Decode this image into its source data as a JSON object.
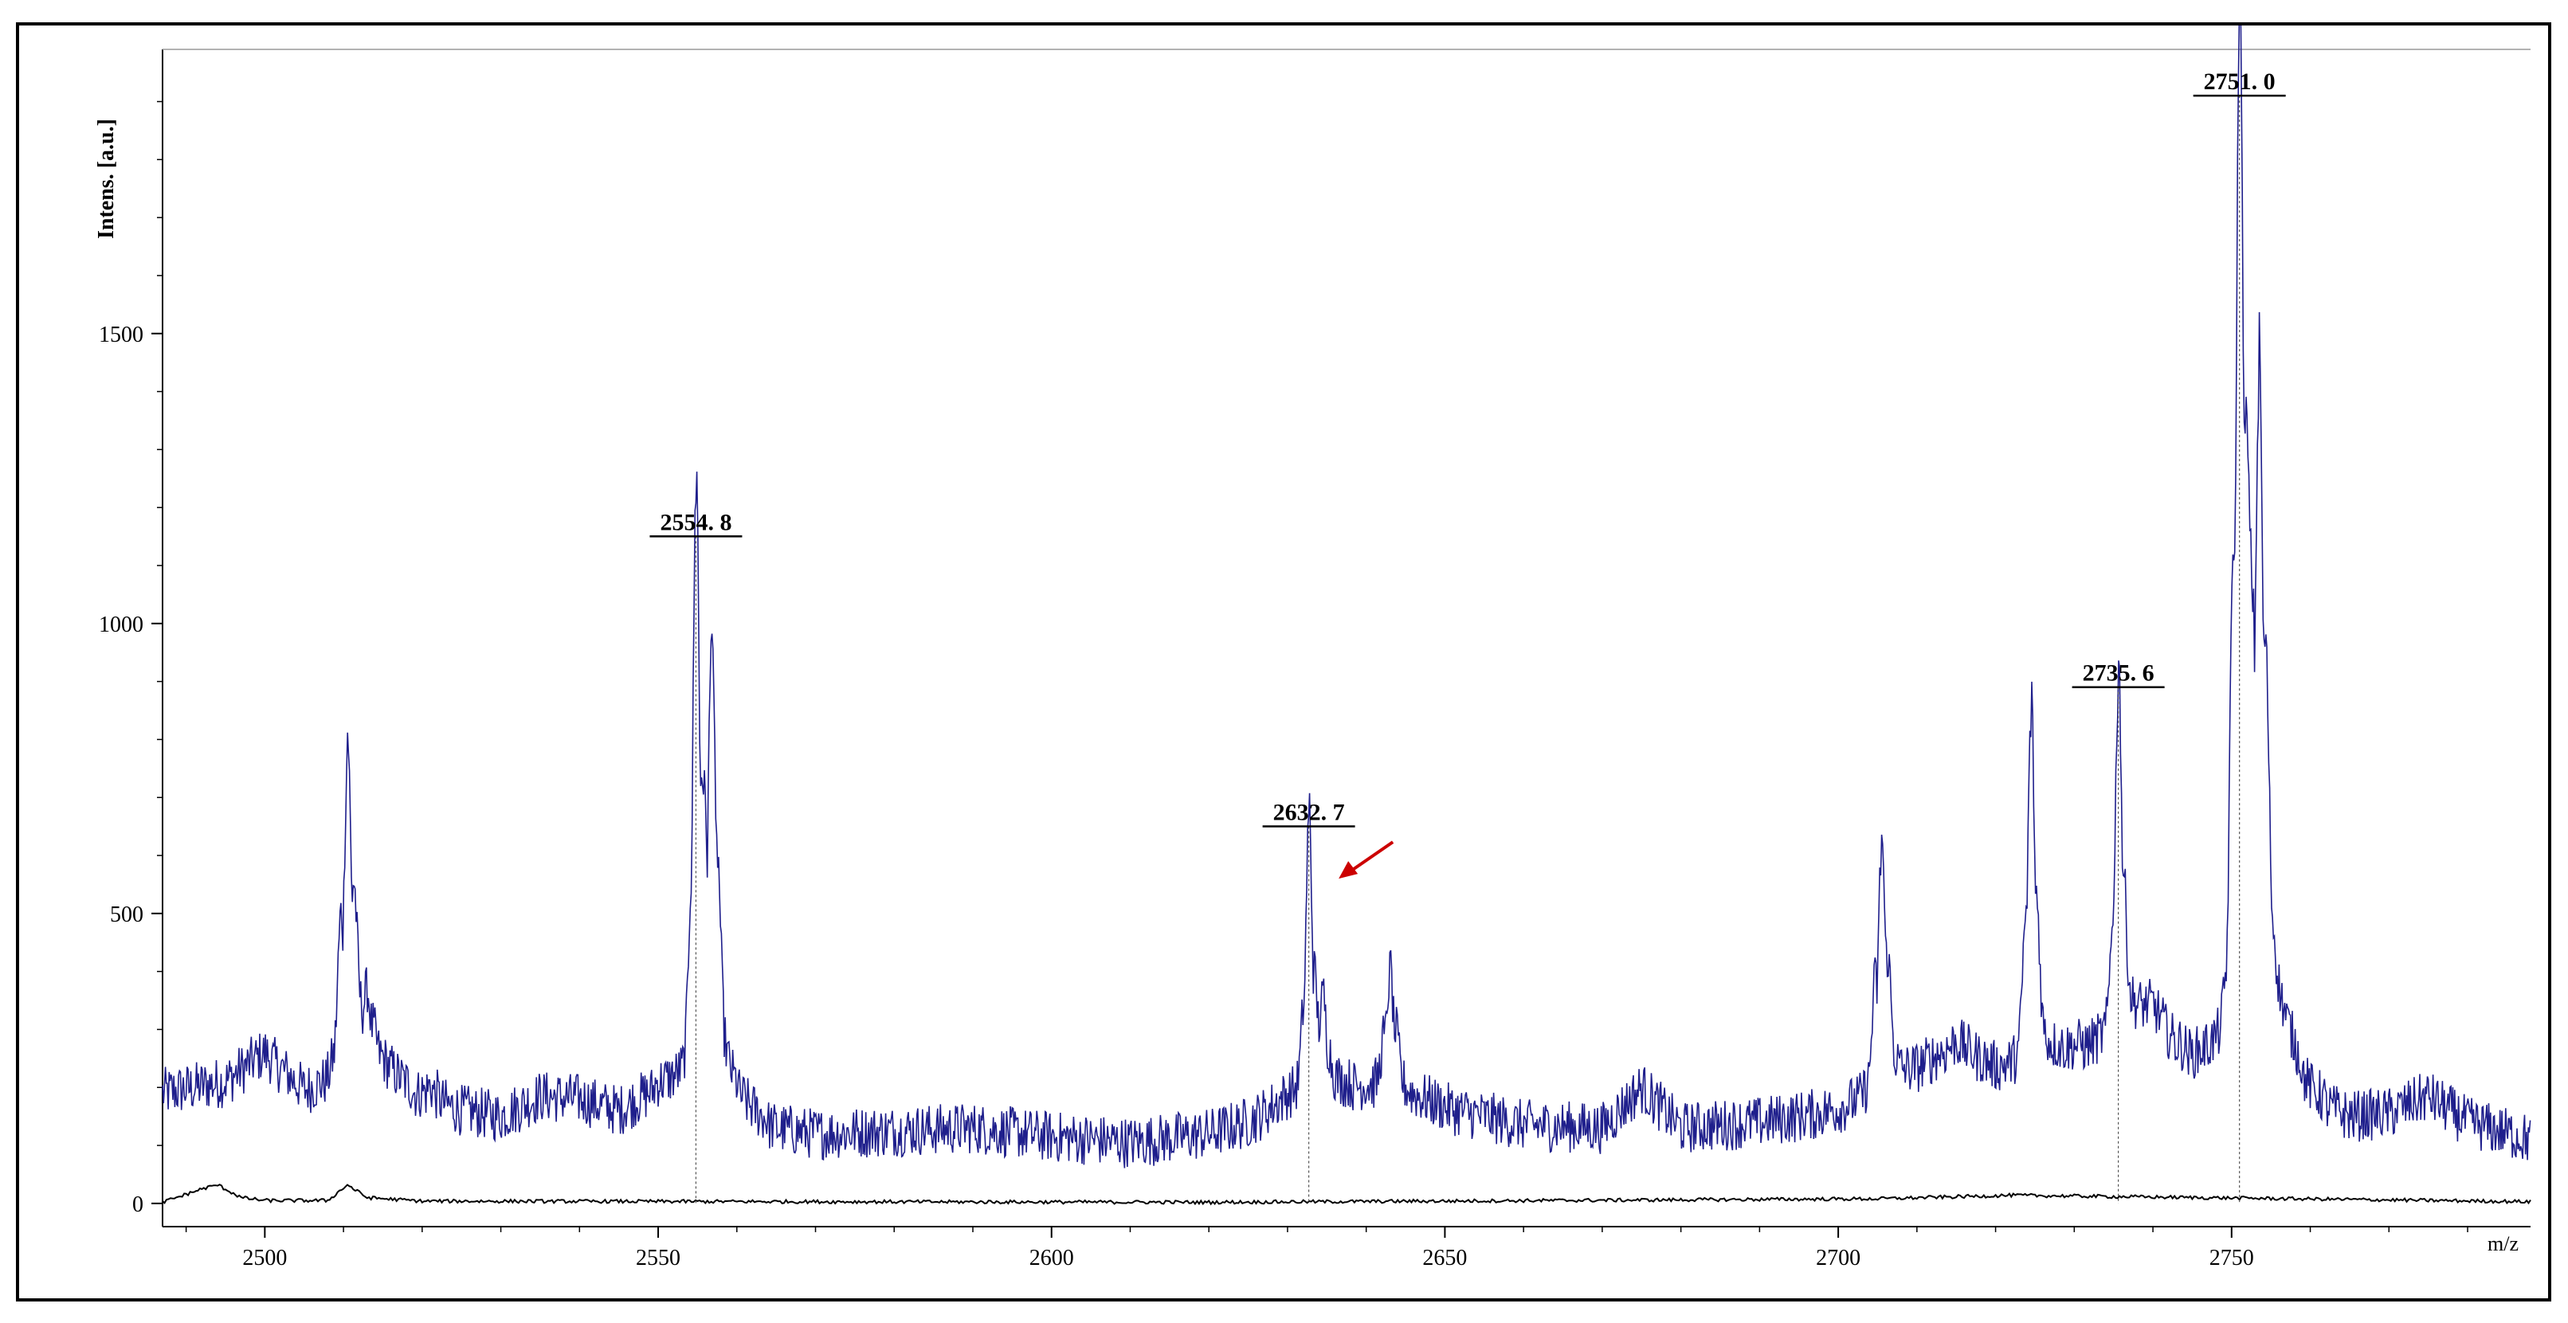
{
  "chart_data": {
    "type": "line",
    "title": "",
    "xlabel": "m/z",
    "ylabel": "Intens.  [a.u.]",
    "xlim": [
      2487,
      2788
    ],
    "ylim": [
      -40,
      1990
    ],
    "x_ticks": [
      2500,
      2550,
      2600,
      2650,
      2700,
      2750
    ],
    "y_ticks": [
      0,
      500,
      1000,
      1500
    ],
    "grid": false,
    "colors": {
      "spectrum": "#1f1f8c",
      "baseline": "#000000",
      "arrow": "#cc0000"
    },
    "spectrum_baseline": [
      [
        2487,
        190
      ],
      [
        2495,
        210
      ],
      [
        2500,
        260
      ],
      [
        2505,
        190
      ],
      [
        2510,
        200
      ],
      [
        2515,
        220
      ],
      [
        2520,
        180
      ],
      [
        2525,
        160
      ],
      [
        2530,
        150
      ],
      [
        2535,
        185
      ],
      [
        2540,
        180
      ],
      [
        2545,
        160
      ],
      [
        2550,
        200
      ],
      [
        2555,
        190
      ],
      [
        2560,
        160
      ],
      [
        2565,
        130
      ],
      [
        2570,
        120
      ],
      [
        2580,
        125
      ],
      [
        2590,
        130
      ],
      [
        2600,
        115
      ],
      [
        2610,
        105
      ],
      [
        2620,
        120
      ],
      [
        2625,
        140
      ],
      [
        2630,
        180
      ],
      [
        2640,
        200
      ],
      [
        2650,
        165
      ],
      [
        2660,
        135
      ],
      [
        2670,
        130
      ],
      [
        2675,
        200
      ],
      [
        2680,
        130
      ],
      [
        2690,
        140
      ],
      [
        2700,
        160
      ],
      [
        2705,
        180
      ],
      [
        2710,
        220
      ],
      [
        2715,
        280
      ],
      [
        2720,
        230
      ],
      [
        2725,
        230
      ],
      [
        2730,
        260
      ],
      [
        2735,
        280
      ],
      [
        2740,
        330
      ],
      [
        2745,
        240
      ],
      [
        2750,
        230
      ],
      [
        2755,
        260
      ],
      [
        2760,
        180
      ],
      [
        2765,
        150
      ],
      [
        2770,
        155
      ],
      [
        2775,
        185
      ],
      [
        2780,
        140
      ],
      [
        2788,
        110
      ]
    ],
    "spectrum_peaks": [
      [
        2510.5,
        720,
        1.4
      ],
      [
        2513.0,
        310,
        1.2
      ],
      [
        2521.0,
        200,
        1.3
      ],
      [
        2537.0,
        150,
        2.0
      ],
      [
        2549.0,
        190,
        1.0
      ],
      [
        2554.8,
        1130,
        0.9
      ],
      [
        2556.8,
        850,
        1.2
      ],
      [
        2589.0,
        80,
        1.5
      ],
      [
        2632.7,
        620,
        0.9
      ],
      [
        2634.5,
        310,
        1.0
      ],
      [
        2643.0,
        380,
        1.2
      ],
      [
        2649.0,
        160,
        1.4
      ],
      [
        2675.5,
        150,
        1.2
      ],
      [
        2705.5,
        570,
        1.3
      ],
      [
        2724.5,
        790,
        1.1
      ],
      [
        2735.6,
        850,
        1.0
      ],
      [
        2738.0,
        250,
        1.5
      ],
      [
        2751.0,
        1880,
        1.3
      ],
      [
        2753.5,
        1200,
        1.4
      ],
      [
        2776.0,
        80,
        1.2
      ]
    ],
    "baseline_trace": [
      [
        2487,
        2
      ],
      [
        2492,
        25
      ],
      [
        2494,
        32
      ],
      [
        2497,
        10
      ],
      [
        2500,
        5
      ],
      [
        2508,
        5
      ],
      [
        2510.5,
        32
      ],
      [
        2513,
        10
      ],
      [
        2520,
        4
      ],
      [
        2620,
        2
      ],
      [
        2705,
        8
      ],
      [
        2722,
        14
      ],
      [
        2788,
        3
      ]
    ],
    "peak_labels": [
      {
        "x": 2554.8,
        "y": 1120,
        "text": "2554. 8"
      },
      {
        "x": 2632.7,
        "y": 620,
        "text": "2632. 7"
      },
      {
        "x": 2735.6,
        "y": 860,
        "text": "2735. 6"
      },
      {
        "x": 2751.0,
        "y": 1880,
        "text": "2751. 0"
      }
    ],
    "arrow": {
      "target_x": 2636.5,
      "target_y": 560,
      "note": "red arrow pointing at 2632.7 peak"
    }
  }
}
